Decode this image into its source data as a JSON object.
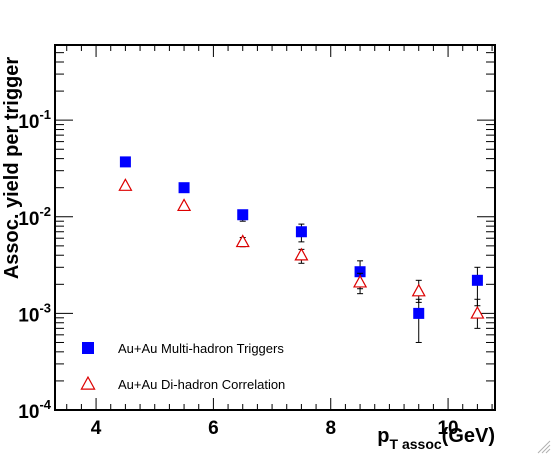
{
  "chart_data": {
    "type": "scatter",
    "xlabel_main": "p",
    "xlabel_sub": "T assoc",
    "xlabel_unit": "(GeV)",
    "ylabel": "Assoc. yield per trigger",
    "xlim": [
      3.3,
      10.8
    ],
    "ylim": [
      0.0001,
      0.6
    ],
    "yscale": "log",
    "x_ticks": [
      {
        "value": 4,
        "label": "4"
      },
      {
        "value": 6,
        "label": "6"
      },
      {
        "value": 8,
        "label": "8"
      },
      {
        "value": 10,
        "label": "10"
      }
    ],
    "y_ticks": [
      {
        "value": 0.0001,
        "base": "10",
        "exp": "-4"
      },
      {
        "value": 0.001,
        "base": "10",
        "exp": "-3"
      },
      {
        "value": 0.01,
        "base": "10",
        "exp": "-2"
      },
      {
        "value": 0.1,
        "base": "10",
        "exp": "-1"
      }
    ],
    "series": [
      {
        "name": "Au+Au Multi-hadron Triggers",
        "marker": "filled-square",
        "color": "#0000ff",
        "x": [
          4.5,
          5.5,
          6.5,
          7.5,
          8.5,
          9.5,
          10.5
        ],
        "y": [
          0.037,
          0.02,
          0.0105,
          0.007,
          0.0027,
          0.001,
          0.0022
        ],
        "err_low": [
          0.0008,
          0.0006,
          0.0015,
          0.0015,
          0.0009,
          0.0005,
          0.001
        ],
        "err_high": [
          0.0008,
          0.0006,
          0.0012,
          0.0014,
          0.0008,
          0.0004,
          0.0008
        ]
      },
      {
        "name": "Au+Au Di-hadron Correlation",
        "marker": "open-triangle",
        "color": "#dd0000",
        "x": [
          4.5,
          5.5,
          6.5,
          7.5,
          8.5,
          9.5,
          10.5
        ],
        "y": [
          0.021,
          0.013,
          0.0055,
          0.004,
          0.0021,
          0.0017,
          0.001
        ],
        "err_low": [
          0.0005,
          0.0004,
          0.0006,
          0.0007,
          0.0005,
          0.0004,
          0.0003
        ],
        "err_high": [
          0.0005,
          0.0004,
          0.0006,
          0.0006,
          0.0005,
          0.0005,
          0.0004
        ]
      }
    ],
    "legend": [
      {
        "label": "Au+Au Multi-hadron Triggers",
        "marker": "filled-square",
        "color": "#0000ff"
      },
      {
        "label": "Au+Au Di-hadron Correlation",
        "marker": "open-triangle",
        "color": "#dd0000"
      }
    ],
    "legend_placement": "bottom-left",
    "grid": false
  }
}
